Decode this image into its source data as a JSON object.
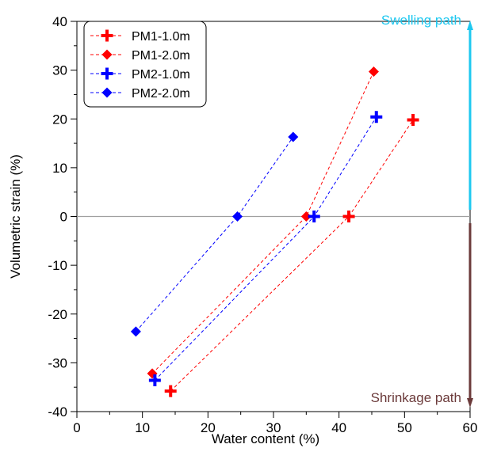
{
  "chart_data": {
    "type": "scatter",
    "title": "",
    "xlabel": "Water content (%)",
    "ylabel": "Volumetric strain (%)",
    "xlim": [
      0,
      60
    ],
    "ylim": [
      -40,
      40
    ],
    "xticks": [
      "0",
      "10",
      "20",
      "30",
      "40",
      "50",
      "60"
    ],
    "yticks": [
      "40",
      "30",
      "20",
      "10",
      "0",
      "-10",
      "-20",
      "-30",
      "-40"
    ],
    "grid": false,
    "legend_position": "top-left",
    "zero_line": true,
    "series": [
      {
        "name": "PM1-1.0m",
        "marker": "plus",
        "color": "#ff0000",
        "points": [
          [
            14.3,
            -35.8
          ],
          [
            41.5,
            0
          ],
          [
            51.3,
            19.8
          ]
        ]
      },
      {
        "name": "PM1-2.0m",
        "marker": "diamond",
        "color": "#ff0000",
        "points": [
          [
            11.5,
            -32.2
          ],
          [
            35.0,
            0
          ],
          [
            45.3,
            29.7
          ]
        ]
      },
      {
        "name": "PM2-1.0m",
        "marker": "plus",
        "color": "#0000ff",
        "points": [
          [
            11.9,
            -33.6
          ],
          [
            36.2,
            0
          ],
          [
            45.7,
            20.4
          ]
        ]
      },
      {
        "name": "PM2-2.0m",
        "marker": "diamond",
        "color": "#0000ff",
        "points": [
          [
            9.0,
            -23.6
          ],
          [
            24.5,
            0
          ],
          [
            33.0,
            16.3
          ]
        ]
      }
    ],
    "annotations": {
      "swelling": {
        "label": "Swelling path",
        "color": "#1ec8f0"
      },
      "shrinkage": {
        "label": "Shrinkage path",
        "color": "#6b3a3a"
      }
    }
  }
}
